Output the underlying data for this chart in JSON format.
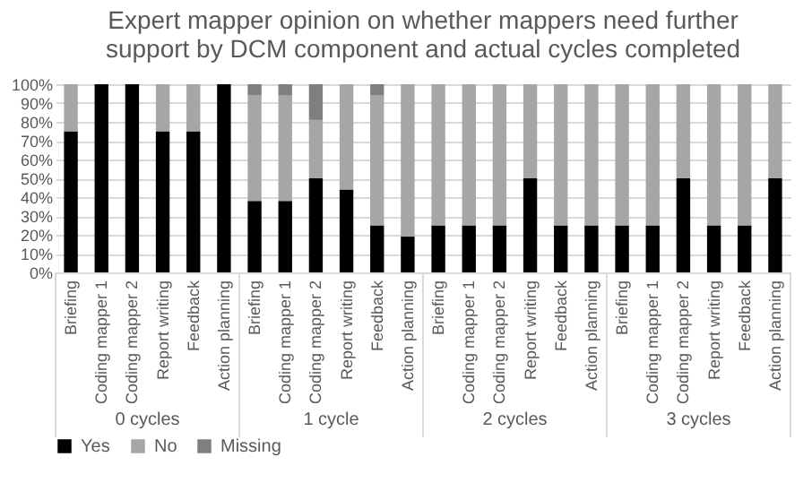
{
  "chart_data": {
    "type": "bar",
    "stacked": true,
    "title": [
      "Expert mapper opinion on whether mappers need further",
      "support by DCM component and actual cycles completed"
    ],
    "categories": [
      "Briefing",
      "Coding mapper 1",
      "Coding mapper 2",
      "Report writing",
      "Feedback",
      "Action planning",
      "Briefing",
      "Coding mapper 1",
      "Coding mapper 2",
      "Report writing",
      "Feedback",
      "Action planning",
      "Briefing",
      "Coding mapper 1",
      "Coding mapper 2",
      "Report writing",
      "Feedback",
      "Action planning",
      "Briefing",
      "Coding mapper 1",
      "Coding mapper 2",
      "Report writing",
      "Feedback",
      "Action planning"
    ],
    "annotations": [
      "0 cycles",
      "1 cycle",
      "2 cycles",
      "3 cycles"
    ],
    "series": [
      {
        "name": "Yes",
        "color": "#000000",
        "values": [
          75,
          100,
          100,
          75,
          75,
          100,
          38,
          38,
          50,
          44,
          25,
          19,
          25,
          25,
          25,
          50,
          25,
          25,
          25,
          25,
          50,
          25,
          25,
          50
        ]
      },
      {
        "name": "No",
        "color": "#a6a6a6",
        "values": [
          25,
          0,
          0,
          25,
          25,
          0,
          56,
          56,
          31,
          56,
          69,
          81,
          75,
          75,
          75,
          50,
          75,
          75,
          75,
          75,
          50,
          75,
          75,
          50
        ]
      },
      {
        "name": "Missing",
        "color": "#7f7f7f",
        "values": [
          0,
          0,
          0,
          0,
          0,
          0,
          6,
          6,
          19,
          0,
          6,
          0,
          0,
          0,
          0,
          0,
          0,
          0,
          0,
          0,
          0,
          0,
          0,
          0
        ]
      }
    ],
    "ylim": [
      0,
      100
    ],
    "yticks": [
      {
        "value": 0,
        "label": "0%"
      },
      {
        "value": 10,
        "label": "10%"
      },
      {
        "value": 20,
        "label": "20%"
      },
      {
        "value": 30,
        "label": "30%"
      },
      {
        "value": 40,
        "label": "40%"
      },
      {
        "value": 50,
        "label": "50%"
      },
      {
        "value": 60,
        "label": "60%"
      },
      {
        "value": 70,
        "label": "70%"
      },
      {
        "value": 80,
        "label": "80%"
      },
      {
        "value": 90,
        "label": "90%"
      },
      {
        "value": 100,
        "label": "100%"
      }
    ],
    "grid": "y",
    "legend": "bottom"
  }
}
